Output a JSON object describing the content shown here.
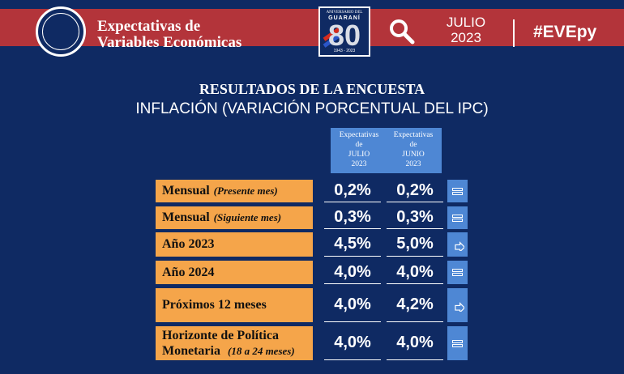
{
  "header": {
    "title_line1": "Expectativas de",
    "title_line2": "Variables Económicas",
    "month": "JULIO",
    "year": "2023",
    "hashtag": "#EVEpy",
    "badge": {
      "line1": "ANIVERSARIO DEL",
      "line2": "GUARANÍ",
      "number": "80",
      "years": "1943 - 2023"
    },
    "colors": {
      "navy": "#0f2a63",
      "red": "#b3343a",
      "orange": "#f5a54a",
      "blue": "#4e87d4"
    }
  },
  "section": {
    "title": "RESULTADOS DE LA ENCUESTA",
    "subtitle": "INFLACIÓN (VARIACIÓN PORCENTUAL DEL IPC)"
  },
  "columns": [
    {
      "l1": "Expectativas",
      "l2": "de",
      "l3": "JULIO",
      "l4": "2023"
    },
    {
      "l1": "Expectativas",
      "l2": "de",
      "l3": "JUNIO",
      "l4": "2023"
    }
  ],
  "rows": [
    {
      "label": "Mensual",
      "note": "(Presente mes)",
      "julio": "0,2%",
      "junio": "0,2%",
      "indicator": "equal-icon"
    },
    {
      "label": "Mensual",
      "note": "(Siguiente mes)",
      "julio": "0,3%",
      "junio": "0,3%",
      "indicator": "equal-icon"
    },
    {
      "label": "Año 2023",
      "note": "",
      "julio": "4,5%",
      "junio": "5,0%",
      "indicator": "down-arrow-icon"
    },
    {
      "label": "Año 2024",
      "note": "",
      "julio": "4,0%",
      "junio": "4,0%",
      "indicator": "equal-icon"
    },
    {
      "label": "Próximos 12 meses",
      "note": "",
      "julio": "4,0%",
      "junio": "4,2%",
      "indicator": "down-arrow-icon"
    },
    {
      "label_line1": "Horizonte de Política",
      "label_line2": "Monetaria",
      "note": "(18 a 24 meses)",
      "julio": "4,0%",
      "junio": "4,0%",
      "indicator": "equal-icon"
    }
  ]
}
